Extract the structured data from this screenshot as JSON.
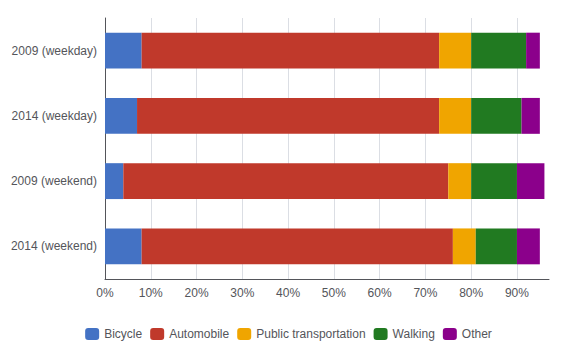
{
  "chart_data": {
    "type": "bar",
    "orientation": "horizontal",
    "stacked": true,
    "categories": [
      "2009 (weekday)",
      "2014 (weekday)",
      "2009 (weekend)",
      "2014 (weekend)"
    ],
    "series": [
      {
        "name": "Bicycle",
        "color": "#4472C4",
        "values": [
          8,
          7,
          4,
          8
        ]
      },
      {
        "name": "Automobile",
        "color": "#C0392B",
        "values": [
          65,
          66,
          71,
          68
        ]
      },
      {
        "name": "Public transportation",
        "color": "#F0A500",
        "values": [
          7,
          7,
          5,
          5
        ]
      },
      {
        "name": "Walking",
        "color": "#217A21",
        "values": [
          12,
          11,
          10,
          9
        ]
      },
      {
        "name": "Other",
        "color": "#8B008B",
        "values": [
          3,
          4,
          6,
          5
        ]
      }
    ],
    "xlim": [
      0,
      97
    ],
    "xticks": [
      {
        "value": 0,
        "label": "0%"
      },
      {
        "value": 10,
        "label": "10%"
      },
      {
        "value": 20,
        "label": "20%"
      },
      {
        "value": 30,
        "label": "30%"
      },
      {
        "value": 40,
        "label": "40%"
      },
      {
        "value": 50,
        "label": "50%"
      },
      {
        "value": 60,
        "label": "60%"
      },
      {
        "value": 70,
        "label": "70%"
      },
      {
        "value": 80,
        "label": "80%"
      },
      {
        "value": 90,
        "label": "90%"
      }
    ],
    "grid": true,
    "legend": "bottom"
  }
}
